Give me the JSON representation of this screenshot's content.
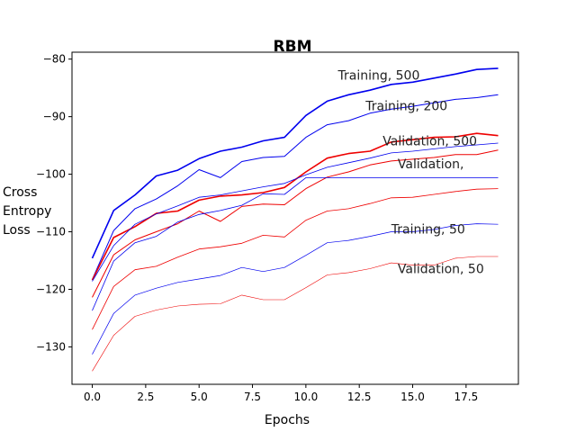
{
  "chart_data": {
    "type": "line",
    "title": "RBM",
    "xlabel": "Epochs",
    "ylabel_lines": [
      "Cross",
      "Entropy",
      "Loss"
    ],
    "xlim": [
      -0.95,
      19.95
    ],
    "ylim": [
      -136.5,
      -78.8
    ],
    "xticks": [
      0.0,
      2.5,
      5.0,
      7.5,
      10.0,
      12.5,
      15.0,
      17.5
    ],
    "xtick_labels": [
      "0.0",
      "2.5",
      "5.0",
      "7.5",
      "10.0",
      "12.5",
      "15.0",
      "17.5"
    ],
    "yticks": [
      -130,
      -120,
      -110,
      -100,
      -90,
      -80
    ],
    "ytick_labels": [
      "−130",
      "−120",
      "−110",
      "−100",
      "−90",
      "−80"
    ],
    "grid": false,
    "x": [
      0,
      1,
      2,
      3,
      4,
      5,
      6,
      7,
      8,
      9,
      10,
      11,
      12,
      13,
      14,
      15,
      16,
      17,
      18,
      19
    ],
    "series": [
      {
        "color": "#0000ee",
        "width": 1.6,
        "values": [
          -114.6,
          -106.3,
          -103.6,
          -100.3,
          -99.3,
          -97.3,
          -96.0,
          -95.3,
          -94.2,
          -93.6,
          -89.8,
          -87.3,
          -86.2,
          -85.4,
          -84.4,
          -84.0,
          -83.3,
          -82.6,
          -81.8,
          -81.6
        ]
      },
      {
        "color": "#0000ee",
        "width": 1.0,
        "values": [
          -118.3,
          -109.8,
          -106.0,
          -104.3,
          -102.0,
          -99.2,
          -100.6,
          -97.8,
          -97.1,
          -96.9,
          -93.6,
          -91.4,
          -90.7,
          -89.4,
          -88.7,
          -88.2,
          -87.6,
          -87.0,
          -86.7,
          -86.2
        ]
      },
      {
        "color": "#ee0000",
        "width": 1.6,
        "values": [
          -118.4,
          -111.0,
          -109.1,
          -106.8,
          -106.4,
          -104.5,
          -103.8,
          -103.6,
          -103.2,
          -102.3,
          -99.6,
          -97.2,
          -96.4,
          -96.0,
          -94.4,
          -94.0,
          -93.6,
          -93.5,
          -92.9,
          -93.3
        ]
      },
      {
        "color": "#0000ee",
        "width": 0.8,
        "values": [
          -118.6,
          -112.4,
          -108.7,
          -106.9,
          -105.5,
          -104.0,
          -103.6,
          -102.9,
          -102.2,
          -101.6,
          -100.1,
          -98.8,
          -98.0,
          -97.2,
          -96.3,
          -96.0,
          -95.6,
          -95.2,
          -94.9,
          -94.6
        ]
      },
      {
        "color": "#ee0000",
        "width": 1.0,
        "values": [
          -121.4,
          -114.0,
          -111.4,
          -110.0,
          -108.6,
          -106.4,
          -108.2,
          -105.6,
          -105.2,
          -105.3,
          -102.5,
          -100.5,
          -99.6,
          -98.4,
          -97.7,
          -97.4,
          -97.1,
          -96.6,
          -96.6,
          -95.8
        ]
      },
      {
        "color": "#0000ee",
        "width": 0.8,
        "values": [
          -123.7,
          -115.1,
          -111.9,
          -110.8,
          -108.3,
          -107.0,
          -106.3,
          -105.4,
          -103.4,
          -103.5,
          -100.6,
          -100.6,
          -100.6,
          -100.6,
          -100.6,
          -100.6,
          -100.6,
          -100.6,
          -100.6,
          -100.6
        ]
      },
      {
        "color": "#ee0000",
        "width": 0.8,
        "values": [
          -127.0,
          -119.5,
          -116.6,
          -116.0,
          -114.4,
          -113.0,
          -112.6,
          -112.0,
          -110.6,
          -110.9,
          -108.0,
          -106.4,
          -106.0,
          -105.1,
          -104.1,
          -104.0,
          -103.5,
          -103.0,
          -102.6,
          -102.5
        ]
      },
      {
        "color": "#0000ee",
        "width": 0.7,
        "values": [
          -131.3,
          -124.2,
          -121.0,
          -119.8,
          -118.8,
          -118.2,
          -117.6,
          -116.2,
          -116.9,
          -116.2,
          -114.1,
          -111.9,
          -111.5,
          -110.8,
          -110.0,
          -110.0,
          -109.6,
          -108.9,
          -108.6,
          -108.7
        ]
      },
      {
        "color": "#ee0000",
        "width": 0.6,
        "values": [
          -134.2,
          -128.0,
          -124.7,
          -123.6,
          -122.9,
          -122.6,
          -122.5,
          -121.0,
          -121.8,
          -121.8,
          -119.7,
          -117.5,
          -117.1,
          -116.4,
          -115.4,
          -115.8,
          -115.8,
          -114.6,
          -114.3,
          -114.3
        ]
      }
    ],
    "annotations": [
      {
        "text": "Training, 500",
        "x": 11.5,
        "y": -83.6
      },
      {
        "text": "Training, 200",
        "x": 12.8,
        "y": -88.9
      },
      {
        "text": "Validation, 500",
        "x": 13.6,
        "y": -95.0
      },
      {
        "text": "Validation,",
        "x": 14.3,
        "y": -99.0
      },
      {
        "text": "Training, 50",
        "x": 14.0,
        "y": -110.3
      },
      {
        "text": "Validation, 50",
        "x": 14.3,
        "y": -117.2
      }
    ]
  }
}
